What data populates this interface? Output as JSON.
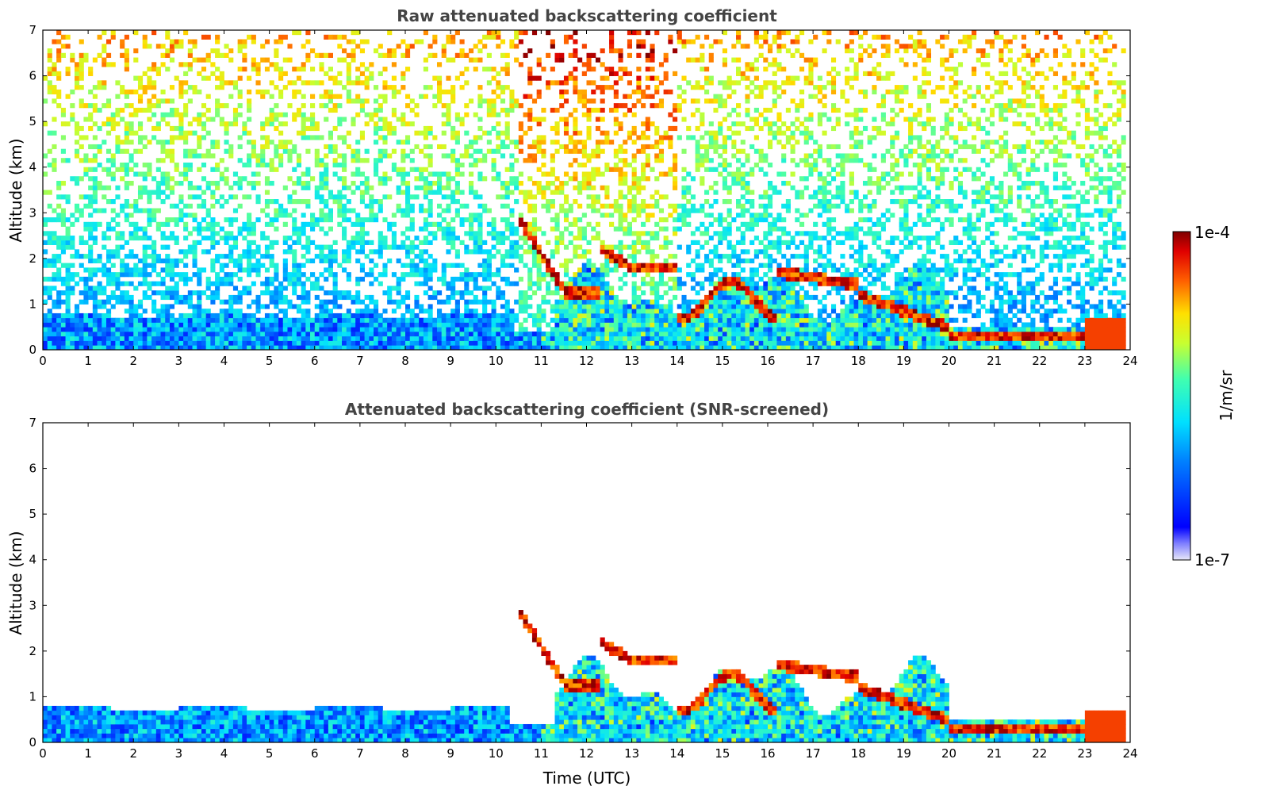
{
  "chart_data": [
    {
      "type": "heatmap",
      "title": "Raw attenuated backscattering coefficient",
      "xlabel": "",
      "ylabel": "Altitude (km)",
      "xlim": [
        0,
        24
      ],
      "ylim": [
        0,
        7
      ],
      "x_ticks": [
        "0",
        "1",
        "2",
        "3",
        "4",
        "5",
        "6",
        "7",
        "8",
        "9",
        "10",
        "11",
        "12",
        "13",
        "14",
        "15",
        "16",
        "17",
        "18",
        "19",
        "20",
        "21",
        "22",
        "23",
        "24"
      ],
      "y_ticks": [
        "0",
        "1",
        "2",
        "3",
        "4",
        "5",
        "6",
        "7"
      ],
      "screened": false
    },
    {
      "type": "heatmap",
      "title": "Attenuated backscattering coefficient (SNR-screened)",
      "xlabel": "Time (UTC)",
      "ylabel": "Altitude (km)",
      "xlim": [
        0,
        24
      ],
      "ylim": [
        0,
        7
      ],
      "x_ticks": [
        "0",
        "1",
        "2",
        "3",
        "4",
        "5",
        "6",
        "7",
        "8",
        "9",
        "10",
        "11",
        "12",
        "13",
        "14",
        "15",
        "16",
        "17",
        "18",
        "19",
        "20",
        "21",
        "22",
        "23",
        "24"
      ],
      "y_ticks": [
        "0",
        "1",
        "2",
        "3",
        "4",
        "5",
        "6",
        "7"
      ],
      "screened": true
    }
  ],
  "colorbar": {
    "label": "1/m/sr",
    "max_label": "1e-4",
    "min_label": "1e-7",
    "colormap": "jet",
    "scale": "log"
  }
}
